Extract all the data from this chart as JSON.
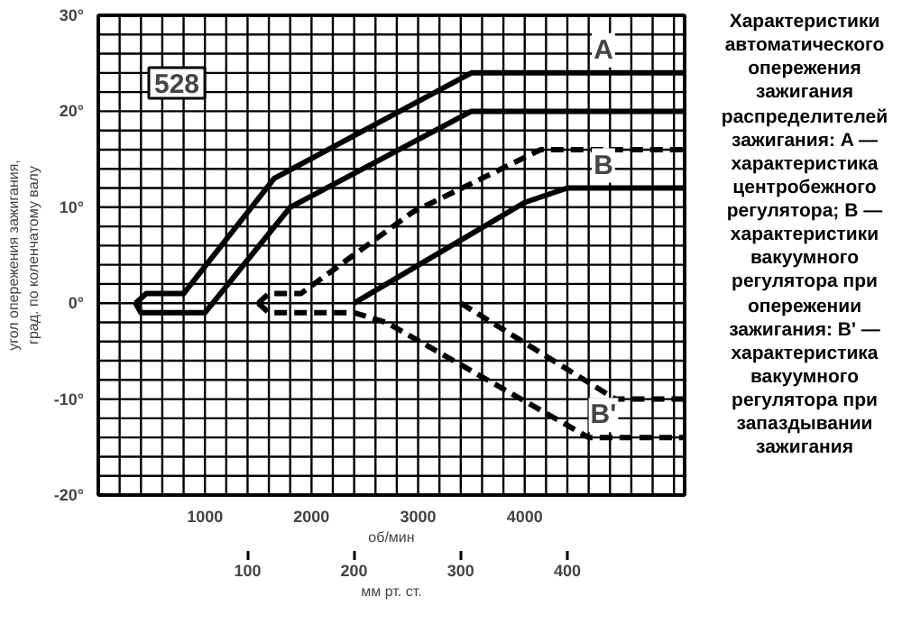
{
  "chart_data": {
    "type": "line",
    "xlabel": "об/мин",
    "x2label": "мм рт. ст.",
    "ylabel": "угол опережения зажигания, град. по коленчатому валу",
    "xlim": [
      0,
      5500
    ],
    "ylim": [
      -20,
      30
    ],
    "x2lim": [
      -40,
      510
    ],
    "xticks": [
      {
        "value": 200,
        "label": null
      },
      {
        "value": 400,
        "label": null
      },
      {
        "value": 600,
        "label": null
      },
      {
        "value": 800,
        "label": null
      },
      1000,
      {
        "value": 1200,
        "label": null
      },
      {
        "value": 1400,
        "label": null
      },
      {
        "value": 1600,
        "label": null
      },
      {
        "value": 1800,
        "label": null
      },
      2000,
      {
        "value": 2200,
        "label": null
      },
      {
        "value": 2400,
        "label": null
      },
      {
        "value": 2600,
        "label": null
      },
      {
        "value": 2800,
        "label": null
      },
      3000,
      {
        "value": 3200,
        "label": null
      },
      {
        "value": 3400,
        "label": null
      },
      {
        "value": 3600,
        "label": null
      },
      {
        "value": 3800,
        "label": null
      },
      4000,
      {
        "value": 4200,
        "label": null
      },
      {
        "value": 4400,
        "label": null
      },
      {
        "value": 4600,
        "label": null
      },
      {
        "value": 4800,
        "label": null
      },
      {
        "value": 5000,
        "label": null
      },
      {
        "value": 5200,
        "label": null
      },
      {
        "value": 5400,
        "label": null
      }
    ],
    "x2ticks": [
      100,
      200,
      300,
      400
    ],
    "yticks": [
      {
        "value": -20,
        "label": "-20°"
      },
      {
        "value": -18,
        "label": null
      },
      {
        "value": -16,
        "label": null
      },
      {
        "value": -14,
        "label": null
      },
      {
        "value": -12,
        "label": null
      },
      {
        "value": -10,
        "label": "-10°"
      },
      {
        "value": -8,
        "label": null
      },
      {
        "value": -6,
        "label": null
      },
      {
        "value": -4,
        "label": null
      },
      {
        "value": -2,
        "label": null
      },
      {
        "value": 0,
        "label": "0°"
      },
      {
        "value": 2,
        "label": null
      },
      {
        "value": 4,
        "label": null
      },
      {
        "value": 6,
        "label": null
      },
      {
        "value": 8,
        "label": null
      },
      {
        "value": 10,
        "label": "10°"
      },
      {
        "value": 12,
        "label": null
      },
      {
        "value": 14,
        "label": null
      },
      {
        "value": 16,
        "label": null
      },
      {
        "value": 18,
        "label": null
      },
      {
        "value": 20,
        "label": "20°"
      },
      {
        "value": 22,
        "label": null
      },
      {
        "value": 24,
        "label": null
      },
      {
        "value": 26,
        "label": null
      },
      {
        "value": 28,
        "label": null
      },
      {
        "value": 30,
        "label": "30°"
      }
    ],
    "grid": true,
    "line_style": "solid",
    "series": [
      {
        "name": "A",
        "color": "#000000",
        "x": [
          350,
          450,
          800,
          1650,
          3500,
          5500
        ],
        "values": [
          0,
          1,
          1,
          13,
          24,
          24
        ]
      },
      {
        "color": "#000000",
        "x": [
          350,
          400,
          1000,
          1800,
          3500,
          5500
        ],
        "values": [
          0,
          -1,
          -1,
          10,
          20,
          20
        ]
      },
      {
        "color": "#000000",
        "line_style": "dashed",
        "x": [
          1500,
          1600,
          1900,
          2950,
          4150,
          5500
        ],
        "values": [
          0,
          1,
          1,
          9.5,
          16,
          16
        ]
      },
      {
        "name": "B",
        "color": "#000000",
        "x": [
          2400,
          4000,
          4400,
          5500
        ],
        "values": [
          0,
          10.5,
          12,
          12
        ]
      },
      {
        "name": "B'",
        "color": "#000000",
        "line_style": "dashed",
        "x": [
          1500,
          1600,
          2400,
          2700,
          4600,
          5500
        ],
        "values": [
          0,
          -1,
          -1,
          -2,
          -14,
          -14
        ]
      },
      {
        "color": "#000000",
        "line_style": "dashed",
        "x": [
          3400,
          4850,
          5500
        ],
        "values": [
          0,
          -10,
          -10
        ]
      }
    ],
    "annotations": [
      "528",
      "Характеристики автоматического опережения зажигания распределителей зажигания: A — характеристика центробежного регулятора; B — характеристики вакуумного регулятора при опережении зажигания: B' — характеристика вакуумного регулятора при запаздывании зажигания"
    ]
  }
}
